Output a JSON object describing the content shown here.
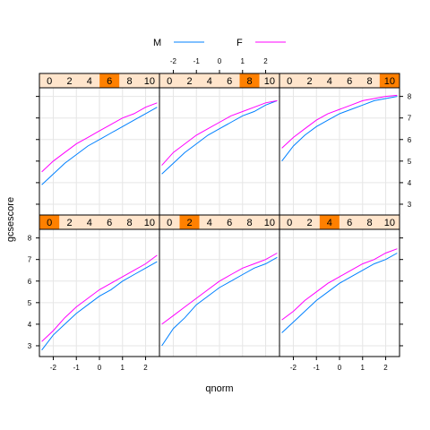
{
  "chart_data": {
    "type": "line",
    "xlabel": "qnorm",
    "ylabel": "gcsescore",
    "xlim": [
      -2.6,
      2.6
    ],
    "ylim": [
      2.5,
      8.4
    ],
    "x_ticks": [
      -2,
      -1,
      0,
      1,
      2
    ],
    "y_ticks": [
      3,
      4,
      5,
      6,
      7,
      8
    ],
    "strip_levels": [
      "0",
      "2",
      "4",
      "6",
      "8",
      "10"
    ],
    "legend": {
      "placement": "top",
      "entries": [
        {
          "name": "M",
          "color": "#0080ff"
        },
        {
          "name": "F",
          "color": "#ff00ff"
        }
      ]
    },
    "panels": [
      {
        "strip_highlight": "0",
        "series": [
          {
            "name": "M",
            "color": "#0080ff",
            "x": [
              -2.5,
              -2.0,
              -1.5,
              -1.0,
              -0.5,
              0.0,
              0.5,
              1.0,
              1.5,
              2.0,
              2.5
            ],
            "y": [
              2.8,
              3.5,
              4.0,
              4.5,
              4.9,
              5.3,
              5.6,
              6.0,
              6.3,
              6.6,
              6.9
            ]
          },
          {
            "name": "F",
            "color": "#ff00ff",
            "x": [
              -2.5,
              -2.0,
              -1.5,
              -1.0,
              -0.5,
              0.0,
              0.5,
              1.0,
              1.5,
              2.0,
              2.5
            ],
            "y": [
              3.2,
              3.7,
              4.3,
              4.8,
              5.2,
              5.6,
              5.9,
              6.2,
              6.5,
              6.8,
              7.2
            ]
          }
        ]
      },
      {
        "strip_highlight": "2",
        "series": [
          {
            "name": "M",
            "color": "#0080ff",
            "x": [
              -2.5,
              -2.0,
              -1.5,
              -1.0,
              -0.5,
              0.0,
              0.5,
              1.0,
              1.5,
              2.0,
              2.5
            ],
            "y": [
              3.0,
              3.8,
              4.3,
              4.9,
              5.3,
              5.7,
              6.0,
              6.3,
              6.6,
              6.8,
              7.1
            ]
          },
          {
            "name": "F",
            "color": "#ff00ff",
            "x": [
              -2.5,
              -2.0,
              -1.5,
              -1.0,
              -0.5,
              0.0,
              0.5,
              1.0,
              1.5,
              2.0,
              2.5
            ],
            "y": [
              4.0,
              4.4,
              4.8,
              5.2,
              5.6,
              6.0,
              6.3,
              6.6,
              6.8,
              7.0,
              7.3
            ]
          }
        ]
      },
      {
        "strip_highlight": "4",
        "series": [
          {
            "name": "M",
            "color": "#0080ff",
            "x": [
              -2.5,
              -2.0,
              -1.5,
              -1.0,
              -0.5,
              0.0,
              0.5,
              1.0,
              1.5,
              2.0,
              2.5
            ],
            "y": [
              3.6,
              4.1,
              4.6,
              5.1,
              5.5,
              5.9,
              6.2,
              6.5,
              6.8,
              7.0,
              7.3
            ]
          },
          {
            "name": "F",
            "color": "#ff00ff",
            "x": [
              -2.5,
              -2.0,
              -1.5,
              -1.0,
              -0.5,
              0.0,
              0.5,
              1.0,
              1.5,
              2.0,
              2.5
            ],
            "y": [
              4.2,
              4.6,
              5.1,
              5.5,
              5.9,
              6.2,
              6.5,
              6.8,
              7.0,
              7.3,
              7.5
            ]
          }
        ]
      },
      {
        "strip_highlight": "6",
        "series": [
          {
            "name": "M",
            "color": "#0080ff",
            "x": [
              -2.5,
              -2.0,
              -1.5,
              -1.0,
              -0.5,
              0.0,
              0.5,
              1.0,
              1.5,
              2.0,
              2.5
            ],
            "y": [
              3.9,
              4.4,
              4.9,
              5.3,
              5.7,
              6.0,
              6.3,
              6.6,
              6.9,
              7.2,
              7.5
            ]
          },
          {
            "name": "F",
            "color": "#ff00ff",
            "x": [
              -2.5,
              -2.0,
              -1.5,
              -1.0,
              -0.5,
              0.0,
              0.5,
              1.0,
              1.5,
              2.0,
              2.5
            ],
            "y": [
              4.5,
              5.0,
              5.4,
              5.8,
              6.1,
              6.4,
              6.7,
              7.0,
              7.2,
              7.5,
              7.7
            ]
          }
        ]
      },
      {
        "strip_highlight": "8",
        "series": [
          {
            "name": "M",
            "color": "#0080ff",
            "x": [
              -2.5,
              -2.0,
              -1.5,
              -1.0,
              -0.5,
              0.0,
              0.5,
              1.0,
              1.5,
              2.0,
              2.5
            ],
            "y": [
              4.4,
              4.9,
              5.4,
              5.8,
              6.2,
              6.5,
              6.8,
              7.1,
              7.3,
              7.6,
              7.8
            ]
          },
          {
            "name": "F",
            "color": "#ff00ff",
            "x": [
              -2.5,
              -2.0,
              -1.5,
              -1.0,
              -0.5,
              0.0,
              0.5,
              1.0,
              1.5,
              2.0,
              2.5
            ],
            "y": [
              4.8,
              5.4,
              5.8,
              6.2,
              6.5,
              6.8,
              7.1,
              7.3,
              7.5,
              7.7,
              7.8
            ]
          }
        ]
      },
      {
        "strip_highlight": "10",
        "series": [
          {
            "name": "M",
            "color": "#0080ff",
            "x": [
              -2.5,
              -2.0,
              -1.5,
              -1.0,
              -0.5,
              0.0,
              0.5,
              1.0,
              1.5,
              2.0,
              2.5
            ],
            "y": [
              5.0,
              5.7,
              6.2,
              6.6,
              6.9,
              7.2,
              7.4,
              7.6,
              7.8,
              7.9,
              8.0
            ]
          },
          {
            "name": "F",
            "color": "#ff00ff",
            "x": [
              -2.5,
              -2.0,
              -1.5,
              -1.0,
              -0.5,
              0.0,
              0.5,
              1.0,
              1.5,
              2.0,
              2.5
            ],
            "y": [
              5.6,
              6.1,
              6.5,
              6.9,
              7.2,
              7.4,
              7.6,
              7.8,
              7.9,
              8.0,
              8.05
            ]
          }
        ]
      }
    ]
  }
}
